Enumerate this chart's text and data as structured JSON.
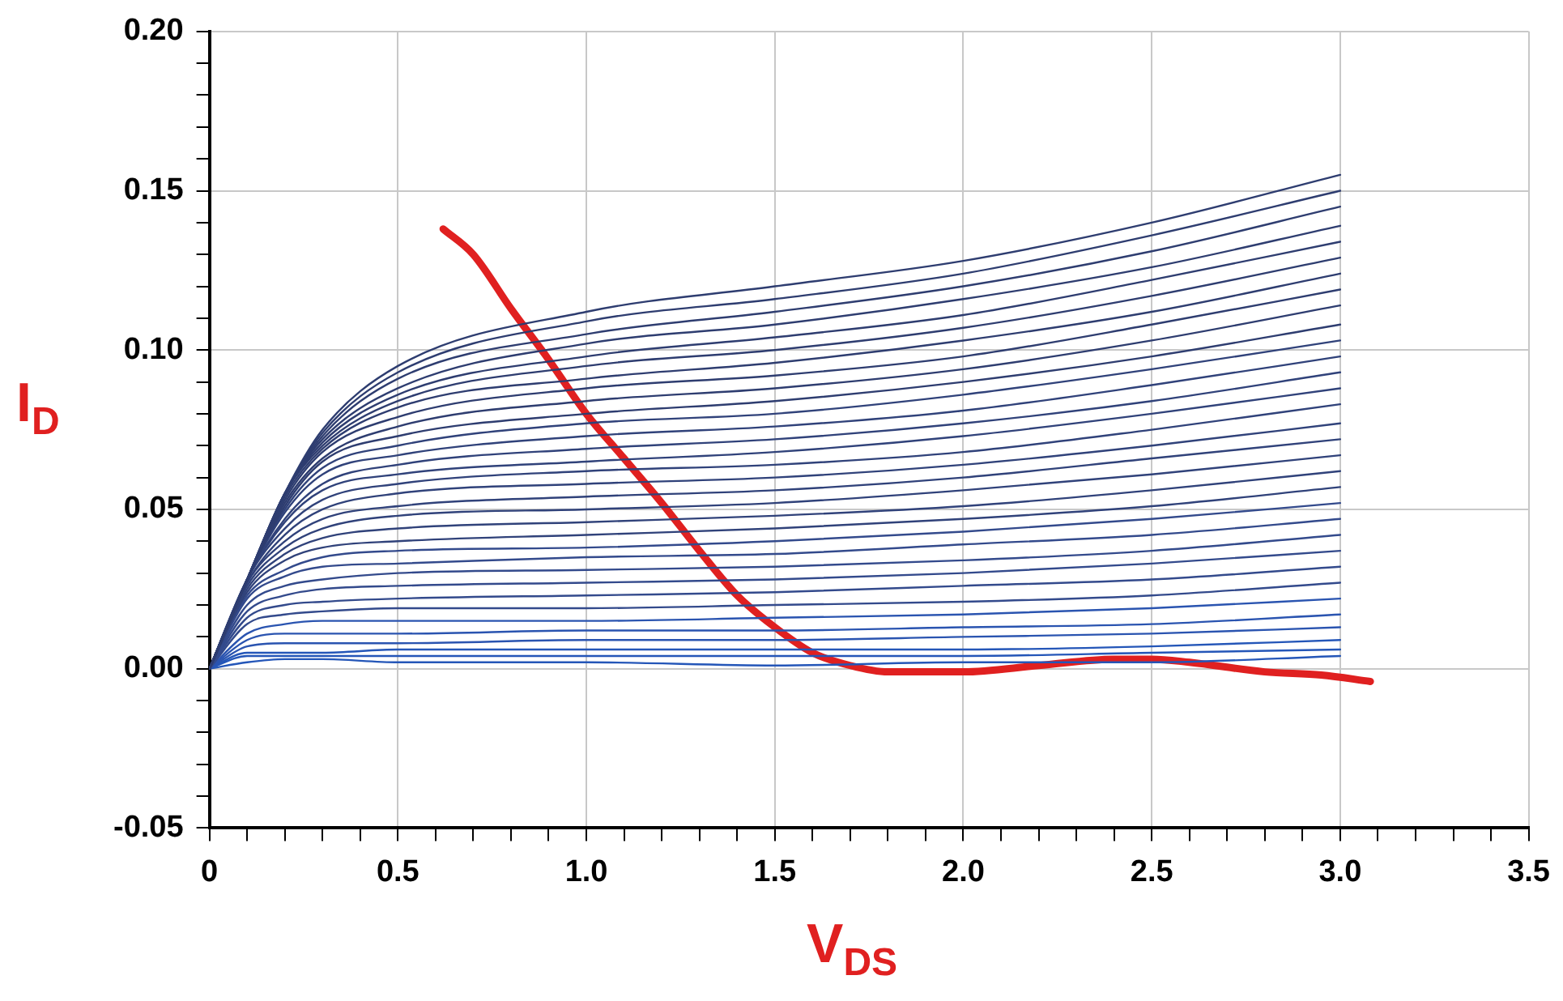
{
  "chart_data": {
    "type": "line",
    "xlabel": "V$_{DS}$",
    "ylabel": "I$_{D}$",
    "x": [
      0,
      0.1,
      0.2,
      0.3,
      0.5,
      1,
      1.5,
      2,
      2.5,
      3
    ],
    "xlim": [
      0,
      3.5
    ],
    "xticks": [
      0,
      {
        "value": 0.1,
        "label": null
      },
      {
        "value": 0.2,
        "label": null
      },
      {
        "value": 0.3,
        "label": null
      },
      {
        "value": 0.4,
        "label": null
      },
      {
        "value": 0.5,
        "label": "0.5"
      },
      {
        "value": 0.6,
        "label": null
      },
      {
        "value": 0.7,
        "label": null
      },
      {
        "value": 0.8,
        "label": null
      },
      {
        "value": 0.9,
        "label": null
      },
      {
        "value": 1,
        "label": "1.0"
      },
      {
        "value": 1.1,
        "label": null
      },
      {
        "value": 1.2,
        "label": null
      },
      {
        "value": 1.3,
        "label": null
      },
      {
        "value": 1.4,
        "label": null
      },
      1.5,
      {
        "value": 1.6,
        "label": null
      },
      {
        "value": 1.7,
        "label": null
      },
      {
        "value": 1.8,
        "label": null
      },
      {
        "value": 1.9,
        "label": null
      },
      {
        "value": 2,
        "label": "2.0"
      },
      {
        "value": 2.1,
        "label": null
      },
      {
        "value": 2.2,
        "label": null
      },
      {
        "value": 2.3,
        "label": null
      },
      {
        "value": 2.4,
        "label": null
      },
      2.5,
      {
        "value": 2.6,
        "label": null
      },
      {
        "value": 2.7,
        "label": null
      },
      {
        "value": 2.8,
        "label": null
      },
      {
        "value": 2.9,
        "label": null
      },
      {
        "value": 3,
        "label": "3.0"
      },
      {
        "value": 3.1,
        "label": null
      },
      {
        "value": 3.2,
        "label": null
      },
      {
        "value": 3.3,
        "label": null
      },
      {
        "value": 3.4,
        "label": null
      },
      3.5
    ],
    "ylim": [
      -0.05,
      0.2
    ],
    "yticks": [
      {
        "value": -0.05,
        "label": "-0.05"
      },
      {
        "value": -0.04,
        "label": null
      },
      {
        "value": -0.03,
        "label": null
      },
      {
        "value": -0.02,
        "label": null
      },
      {
        "value": -0.01,
        "label": null
      },
      {
        "value": 0,
        "label": "0.00"
      },
      {
        "value": 0.01,
        "label": null
      },
      {
        "value": 0.02,
        "label": null
      },
      {
        "value": 0.03,
        "label": null
      },
      {
        "value": 0.04,
        "label": null
      },
      0.05,
      {
        "value": 0.06,
        "label": null
      },
      {
        "value": 0.07,
        "label": null
      },
      {
        "value": 0.08,
        "label": null
      },
      {
        "value": 0.09,
        "label": null
      },
      {
        "value": 0.1,
        "label": "0.10"
      },
      {
        "value": 0.11,
        "label": null
      },
      {
        "value": 0.12,
        "label": null
      },
      {
        "value": 0.13,
        "label": null
      },
      {
        "value": 0.14,
        "label": null
      },
      0.15,
      {
        "value": 0.16,
        "label": null
      },
      {
        "value": 0.17,
        "label": null
      },
      {
        "value": 0.18,
        "label": null
      },
      {
        "value": 0.19,
        "label": null
      },
      {
        "value": 0.2,
        "label": "0.20"
      }
    ],
    "grid": true,
    "legend": false,
    "marker": "none",
    "line_style": "solid",
    "series": [
      {
        "color": "#2e3d70",
        "values": [
          0,
          0.028,
          0.055,
          0.075,
          0.095,
          0.112,
          0.12,
          0.128,
          0.14,
          0.155
        ]
      },
      {
        "color": "#2e3d70",
        "values": [
          0,
          0.028,
          0.055,
          0.074,
          0.093,
          0.109,
          0.116,
          0.124,
          0.136,
          0.15
        ]
      },
      {
        "color": "#2e3d70",
        "values": [
          0,
          0.028,
          0.055,
          0.073,
          0.091,
          0.105,
          0.112,
          0.12,
          0.131,
          0.145
        ]
      },
      {
        "color": "#2e3d70",
        "values": [
          0,
          0.028,
          0.055,
          0.072,
          0.088,
          0.102,
          0.108,
          0.116,
          0.126,
          0.139
        ]
      },
      {
        "color": "#2e3d70",
        "values": [
          0,
          0.028,
          0.055,
          0.071,
          0.086,
          0.098,
          0.104,
          0.111,
          0.122,
          0.134
        ]
      },
      {
        "color": "#2e3d70",
        "values": [
          0,
          0.028,
          0.055,
          0.07,
          0.084,
          0.095,
          0.1,
          0.107,
          0.117,
          0.129
        ]
      },
      {
        "color": "#2e3d70",
        "values": [
          0,
          0.028,
          0.054,
          0.069,
          0.082,
          0.091,
          0.096,
          0.103,
          0.112,
          0.124
        ]
      },
      {
        "color": "#2e3d70",
        "values": [
          0,
          0.028,
          0.053,
          0.068,
          0.079,
          0.088,
          0.092,
          0.098,
          0.108,
          0.119
        ]
      },
      {
        "color": "#2e3d70",
        "values": [
          0,
          0.028,
          0.052,
          0.066,
          0.076,
          0.084,
          0.088,
          0.094,
          0.103,
          0.114
        ]
      },
      {
        "color": "#2e3d70",
        "values": [
          0,
          0.028,
          0.051,
          0.065,
          0.073,
          0.08,
          0.084,
          0.09,
          0.098,
          0.108
        ]
      },
      {
        "color": "#30427a",
        "values": [
          0,
          0.028,
          0.05,
          0.063,
          0.07,
          0.077,
          0.08,
          0.086,
          0.094,
          0.103
        ]
      },
      {
        "color": "#30427a",
        "values": [
          0,
          0.028,
          0.049,
          0.061,
          0.067,
          0.073,
          0.076,
          0.081,
          0.089,
          0.098
        ]
      },
      {
        "color": "#30427a",
        "values": [
          0,
          0.028,
          0.047,
          0.058,
          0.064,
          0.069,
          0.072,
          0.077,
          0.084,
          0.093
        ]
      },
      {
        "color": "#30427a",
        "values": [
          0,
          0.028,
          0.046,
          0.056,
          0.061,
          0.065,
          0.068,
          0.073,
          0.08,
          0.088
        ]
      },
      {
        "color": "#30427a",
        "values": [
          0,
          0.028,
          0.044,
          0.053,
          0.058,
          0.062,
          0.064,
          0.068,
          0.075,
          0.083
        ]
      },
      {
        "color": "#30427a",
        "values": [
          0,
          0.027,
          0.042,
          0.05,
          0.055,
          0.058,
          0.06,
          0.064,
          0.07,
          0.077
        ]
      },
      {
        "color": "#30427a",
        "values": [
          0,
          0.027,
          0.04,
          0.047,
          0.051,
          0.054,
          0.056,
          0.06,
          0.066,
          0.072
        ]
      },
      {
        "color": "#30427a",
        "values": [
          0,
          0.026,
          0.038,
          0.044,
          0.048,
          0.05,
          0.052,
          0.056,
          0.061,
          0.067
        ]
      },
      {
        "color": "#30427a",
        "values": [
          0,
          0.025,
          0.036,
          0.041,
          0.044,
          0.046,
          0.048,
          0.051,
          0.056,
          0.062
        ]
      },
      {
        "color": "#30427a",
        "values": [
          0,
          0.024,
          0.034,
          0.038,
          0.04,
          0.042,
          0.044,
          0.047,
          0.051,
          0.057
        ]
      },
      {
        "color": "#334a8c",
        "values": [
          0,
          0.023,
          0.031,
          0.035,
          0.037,
          0.038,
          0.04,
          0.043,
          0.047,
          0.052
        ]
      },
      {
        "color": "#334a8c",
        "values": [
          0,
          0.022,
          0.029,
          0.032,
          0.033,
          0.035,
          0.036,
          0.039,
          0.042,
          0.047
        ]
      },
      {
        "color": "#334a8c",
        "values": [
          0,
          0.02,
          0.026,
          0.028,
          0.03,
          0.031,
          0.032,
          0.034,
          0.037,
          0.042
        ]
      },
      {
        "color": "#334a8c",
        "values": [
          0,
          0.018,
          0.023,
          0.025,
          0.026,
          0.027,
          0.028,
          0.03,
          0.033,
          0.037
        ]
      },
      {
        "color": "#334a8c",
        "values": [
          0,
          0.016,
          0.02,
          0.021,
          0.022,
          0.023,
          0.024,
          0.026,
          0.028,
          0.032
        ]
      },
      {
        "color": "#334a8c",
        "values": [
          0,
          0.014,
          0.017,
          0.018,
          0.019,
          0.019,
          0.02,
          0.021,
          0.023,
          0.027
        ]
      },
      {
        "color": "#2a54b0",
        "values": [
          0,
          0.011,
          0.014,
          0.015,
          0.015,
          0.015,
          0.016,
          0.017,
          0.019,
          0.022
        ]
      },
      {
        "color": "#2a54b0",
        "values": [
          0,
          0.009,
          0.011,
          0.011,
          0.011,
          0.012,
          0.012,
          0.013,
          0.014,
          0.017
        ]
      },
      {
        "color": "#2a54b0",
        "values": [
          0,
          0.007,
          0.008,
          0.008,
          0.008,
          0.009,
          0.009,
          0.01,
          0.011,
          0.013
        ]
      },
      {
        "color": "#2456b8",
        "values": [
          0,
          0.005,
          0.005,
          0.005,
          0.006,
          0.006,
          0.006,
          0.006,
          0.007,
          0.009
        ]
      },
      {
        "color": "#2456b8",
        "values": [
          0,
          0.004,
          0.004,
          0.004,
          0.004,
          0.004,
          0.004,
          0.004,
          0.005,
          0.006
        ]
      },
      {
        "color": "#2456b8",
        "values": [
          0,
          0.002,
          0.003,
          0.003,
          0.002,
          0.002,
          0.001,
          0.002,
          0.002,
          0.004
        ]
      },
      {
        "color": "#e02020",
        "x": [
          0.62,
          0.7,
          0.8,
          0.9,
          1.0,
          1.1,
          1.2,
          1.3,
          1.4,
          1.5,
          1.6,
          1.7,
          1.8,
          1.9,
          2.0,
          2.2,
          2.4,
          2.5,
          2.6,
          2.8,
          2.95,
          3.08
        ],
        "values": [
          0.138,
          0.13,
          0.113,
          0.097,
          0.08,
          0.066,
          0.052,
          0.037,
          0.023,
          0.013,
          0.005,
          0.001,
          -0.001,
          -0.001,
          -0.001,
          0.001,
          0.003,
          0.003,
          0.002,
          -0.001,
          -0.002,
          -0.004
        ]
      }
    ]
  }
}
